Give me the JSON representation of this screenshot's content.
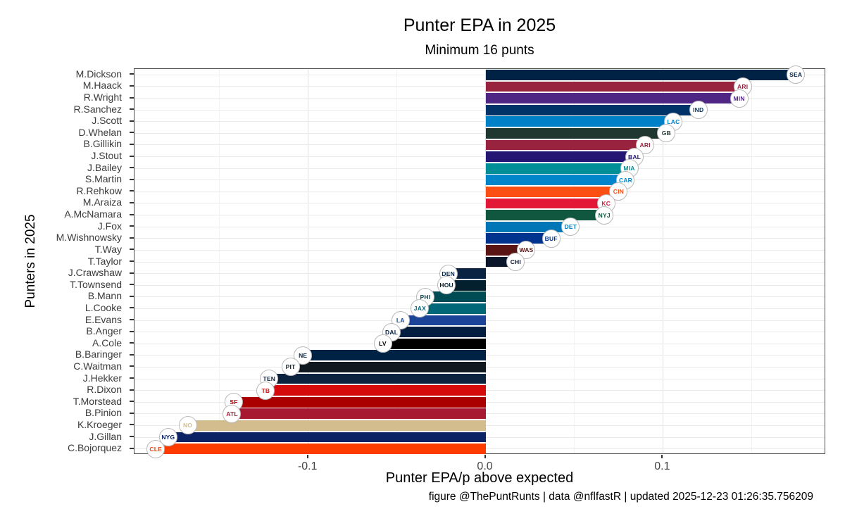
{
  "chart_data": {
    "type": "bar",
    "orientation": "horizontal",
    "title": "Punter EPA in 2025",
    "subtitle": "Minimum 16 punts",
    "xlabel": "Punter EPA/p above expected",
    "ylabel": "Punters in 2025",
    "caption": "figure @ThePuntRunts | data @nflfastR | updated 2025-12-23 01:26:35.756209",
    "xlim": [
      -0.198,
      0.192
    ],
    "x_ticks": [
      -0.1,
      0.0,
      0.1
    ],
    "x_tick_labels": [
      "-0.1",
      "0.0",
      "0.1"
    ],
    "x_minor_ticks": [
      -0.15,
      -0.05,
      0.05,
      0.15
    ],
    "grid": true,
    "legend": "none",
    "punters": [
      {
        "name": "M.Dickson",
        "team": "SEA",
        "value": 0.175,
        "color": "#002244"
      },
      {
        "name": "M.Haack",
        "team": "ARI",
        "value": 0.145,
        "color": "#97233F"
      },
      {
        "name": "R.Wright",
        "team": "MIN",
        "value": 0.143,
        "color": "#4F2683"
      },
      {
        "name": "R.Sanchez",
        "team": "IND",
        "value": 0.12,
        "color": "#013369"
      },
      {
        "name": "J.Scott",
        "team": "LAC",
        "value": 0.106,
        "color": "#0080C6"
      },
      {
        "name": "D.Whelan",
        "team": "GB",
        "value": 0.102,
        "color": "#203731"
      },
      {
        "name": "B.Gillikin",
        "team": "ARI",
        "value": 0.09,
        "color": "#97233F"
      },
      {
        "name": "J.Stout",
        "team": "BAL",
        "value": 0.084,
        "color": "#241773"
      },
      {
        "name": "J.Bailey",
        "team": "MIA",
        "value": 0.081,
        "color": "#008E97"
      },
      {
        "name": "S.Martin",
        "team": "CAR",
        "value": 0.079,
        "color": "#0085CA"
      },
      {
        "name": "R.Rehkow",
        "team": "CIN",
        "value": 0.075,
        "color": "#FB4F14"
      },
      {
        "name": "M.Araiza",
        "team": "KC",
        "value": 0.068,
        "color": "#E31837"
      },
      {
        "name": "A.McNamara",
        "team": "NYJ",
        "value": 0.067,
        "color": "#115740"
      },
      {
        "name": "J.Fox",
        "team": "DET",
        "value": 0.048,
        "color": "#0076B6"
      },
      {
        "name": "M.Wishnowsky",
        "team": "BUF",
        "value": 0.037,
        "color": "#00338D"
      },
      {
        "name": "T.Way",
        "team": "WAS",
        "value": 0.023,
        "color": "#5A1414"
      },
      {
        "name": "T.Taylor",
        "team": "CHI",
        "value": 0.017,
        "color": "#0B162A"
      },
      {
        "name": "J.Crawshaw",
        "team": "DEN",
        "value": -0.021,
        "color": "#0A2343"
      },
      {
        "name": "T.Townsend",
        "team": "HOU",
        "value": -0.022,
        "color": "#03202F"
      },
      {
        "name": "B.Mann",
        "team": "PHI",
        "value": -0.034,
        "color": "#004C54"
      },
      {
        "name": "L.Cooke",
        "team": "JAX",
        "value": -0.037,
        "color": "#006778"
      },
      {
        "name": "E.Evans",
        "team": "LA",
        "value": -0.048,
        "color": "#1B4397"
      },
      {
        "name": "B.Anger",
        "team": "DAL",
        "value": -0.053,
        "color": "#041E42"
      },
      {
        "name": "A.Cole",
        "team": "LV",
        "value": -0.058,
        "color": "#000000"
      },
      {
        "name": "B.Baringer",
        "team": "NE",
        "value": -0.103,
        "color": "#002244"
      },
      {
        "name": "C.Waitman",
        "team": "PIT",
        "value": -0.11,
        "color": "#101820"
      },
      {
        "name": "J.Hekker",
        "team": "TEN",
        "value": -0.122,
        "color": "#0C2340"
      },
      {
        "name": "R.Dixon",
        "team": "TB",
        "value": -0.124,
        "color": "#D50A0A"
      },
      {
        "name": "T.Morstead",
        "team": "SF",
        "value": -0.142,
        "color": "#AA0000"
      },
      {
        "name": "B.Pinion",
        "team": "ATL",
        "value": -0.143,
        "color": "#A71930"
      },
      {
        "name": "K.Kroeger",
        "team": "NO",
        "value": -0.168,
        "color": "#D3BC8D"
      },
      {
        "name": "J.Gillan",
        "team": "NYG",
        "value": -0.179,
        "color": "#0B2265"
      },
      {
        "name": "C.Bojorquez",
        "team": "CLE",
        "value": -0.186,
        "color": "#FF3C00"
      }
    ]
  }
}
